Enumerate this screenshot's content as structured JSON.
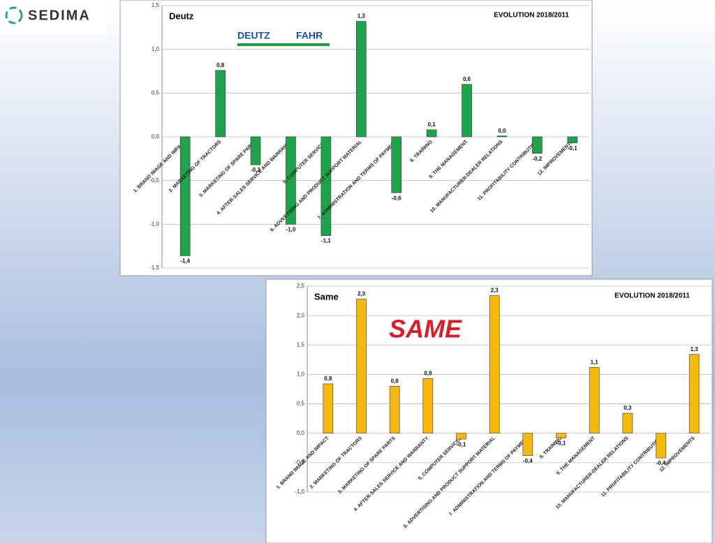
{
  "logo": "SEDIMA",
  "chart_data": [
    {
      "type": "bar",
      "title": "Deutz",
      "subtitle": "EVOLUTION 2018/2011",
      "logo": [
        "DEUTZ",
        "FAHR"
      ],
      "categories": [
        "1. BRAND IMAGE AND IMPACT",
        "2. MARKETING OF TRACTORS",
        "3. MARKETING OF SPARE PARTS",
        "4. AFTER-SALES SERVICE AND WARRANTY",
        "5. COMPUTER SERVICES",
        "6. ADVERTISING AND PRODUCT SUPPORT MATERIAL",
        "7. ADMINISTRATION AND TERMS OF PAYMENT",
        "8. TRAINING",
        "9. THE MANAGEMENT",
        "10. MANUFACTURER-DEALER RELATIONS",
        "11. PROFITABILITY CONTRIBUTION",
        "12. IMPROVEMENTS"
      ],
      "values": [
        -1.36,
        0.76,
        -0.32,
        -1.0,
        -1.13,
        1.32,
        -0.64,
        0.08,
        0.6,
        0.01,
        -0.19,
        -0.07
      ],
      "value_labels": [
        "-1,4",
        "0,8",
        "-0,3",
        "-1,0",
        "-1,1",
        "1,3",
        "-0,6",
        "0,1",
        "0,6",
        "0,0",
        "-0,2",
        "-0,1"
      ],
      "color": "#1fa34a",
      "ylim": [
        -1.5,
        1.5
      ],
      "yticks": [
        {
          "value": -1.5,
          "label": "-1,5"
        },
        {
          "value": -1.0,
          "label": "-1,0"
        },
        {
          "value": -0.5,
          "label": "-0,5"
        },
        {
          "value": 0,
          "label": "0,0"
        },
        {
          "value": 0.5,
          "label": "0,5"
        },
        {
          "value": 1.0,
          "label": "1,0"
        },
        {
          "value": 1.5,
          "label": "1,5"
        }
      ],
      "grid": true
    },
    {
      "type": "bar",
      "title": "Same",
      "subtitle": "EVOLUTION 2018/2011",
      "logo": [
        "SAME"
      ],
      "categories": [
        "1. BRAND IMAGE AND IMPACT",
        "2. MARKETING OF TRACTORS",
        "3. MARKETING OF SPARE PARTS",
        "4. AFTER-SALES SERVICE AND WARRANTY",
        "5. COMPUTER SERVICES",
        "6. ADVERTISING AND PRODUCT SUPPORT MATERIAL",
        "7. ADMINISTRATION AND TERMS OF PAYMENT",
        "8. TRAINING",
        "9. THE MANAGEMENT",
        "10. MANUFACTURER-DEALER RELATIONS",
        "11. PROFITABILITY CONTRIBUTION",
        "12. IMPROVEMENTS"
      ],
      "values": [
        0.84,
        2.28,
        0.8,
        0.93,
        -0.1,
        2.34,
        -0.38,
        -0.08,
        1.12,
        0.34,
        -0.42,
        1.34
      ],
      "value_labels": [
        "0,8",
        "2,3",
        "0,8",
        "0,9",
        "-0,1",
        "2,3",
        "-0,4",
        "-0,1",
        "1,1",
        "0,3",
        "-0,4",
        "1,3"
      ],
      "color": "#f5b90f",
      "ylim": [
        -1.0,
        2.5
      ],
      "yticks": [
        {
          "value": -1.0,
          "label": "-1,0"
        },
        {
          "value": -0.5,
          "label": "-0,5"
        },
        {
          "value": 0,
          "label": "0,0"
        },
        {
          "value": 0.5,
          "label": "0,5"
        },
        {
          "value": 1.0,
          "label": "1,0"
        },
        {
          "value": 1.5,
          "label": "1,5"
        },
        {
          "value": 2.0,
          "label": "2,0"
        },
        {
          "value": 2.5,
          "label": "2,5"
        }
      ],
      "grid": true
    }
  ]
}
